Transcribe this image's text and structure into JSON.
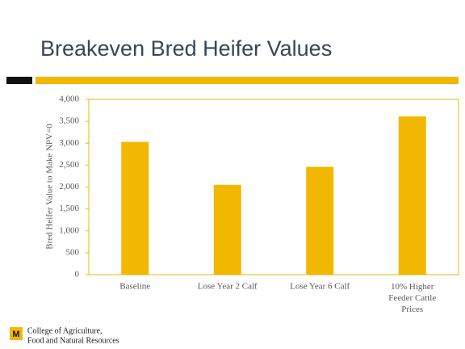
{
  "chart_data": {
    "type": "bar",
    "title": "Breakeven Bred Heifer Values",
    "ylabel": "Bred Heifer Value to Make NPV=0",
    "categories": [
      "Baseline",
      "Lose Year 2 Calf",
      "Lose Year 6 Calf",
      "10% Higher Feeder Cattle Prices"
    ],
    "values": [
      3030,
      2050,
      2460,
      3610
    ],
    "color": "#f2b700",
    "ylim": [
      0,
      4000
    ],
    "yticks": [
      0,
      500,
      {
        "value": 1000,
        "label": "1,000"
      },
      {
        "value": 1500,
        "label": "1,500"
      },
      {
        "value": 2000,
        "label": "2,000"
      },
      {
        "value": 2500,
        "label": "2,500"
      },
      {
        "value": 3000,
        "label": "3,000"
      },
      {
        "value": 3500,
        "label": "3,500"
      },
      {
        "value": 4000,
        "label": "4,000"
      }
    ],
    "grid": false
  },
  "footer": [
    "College of Agriculture,",
    "Food and Natural Resources"
  ]
}
